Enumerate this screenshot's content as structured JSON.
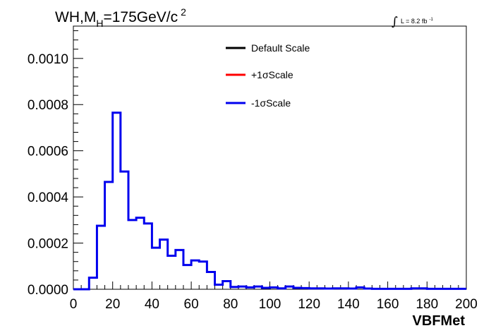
{
  "chart_data": {
    "type": "histogram",
    "title": {
      "prefix": "WH,M",
      "subscript": "H",
      "mid": "=175GeV/c",
      "superscript": "2"
    },
    "luminosity": {
      "integral": "∫",
      "text": "L = 8.2 fb",
      "superscript": "-1"
    },
    "xlabel": "VBFMet",
    "ylabel": "",
    "xlim": [
      0,
      200
    ],
    "ylim": [
      0,
      0.00114
    ],
    "x_ticks": [
      0,
      20,
      40,
      60,
      80,
      100,
      120,
      140,
      160,
      180,
      200
    ],
    "x_tick_labels": [
      "0",
      "20",
      "40",
      "60",
      "80",
      "100",
      "120",
      "140",
      "160",
      "180",
      "200"
    ],
    "y_ticks": [
      0,
      0.0002,
      0.0004,
      0.0006,
      0.0008,
      0.001
    ],
    "y_tick_labels": [
      "0.0000",
      "0.0002",
      "0.0004",
      "0.0006",
      "0.0008",
      "0.0010"
    ],
    "bin_width": 4,
    "bin_edges_start": 0,
    "legend": [
      {
        "label_prefix": "Default Scale",
        "label_sigma": "",
        "label_suffix": "",
        "color": "#000000"
      },
      {
        "label_prefix": "+1",
        "label_sigma": "σ",
        "label_suffix": "Scale",
        "color": "#ff0000"
      },
      {
        "label_prefix": "-1",
        "label_sigma": "σ",
        "label_suffix": "Scale",
        "color": "#0000ee"
      }
    ],
    "series": [
      {
        "name": "-1σScale",
        "color": "#0000ee",
        "values": [
          0,
          0,
          5e-05,
          0.000275,
          0.000465,
          0.000765,
          0.00051,
          0.0003,
          0.00031,
          0.000285,
          0.00018,
          0.000215,
          0.000145,
          0.00017,
          0.000105,
          0.000125,
          0.00012,
          7.5e-05,
          2e-05,
          3.5e-05,
          1e-05,
          1.2e-05,
          8e-06,
          1.2e-05,
          6e-06,
          8e-06,
          4e-06,
          1.2e-05,
          6e-06,
          5e-06,
          4e-06,
          4e-06,
          3e-06,
          4e-06,
          4e-06,
          3e-06,
          8e-06,
          3e-06,
          2e-06,
          2e-06,
          2e-06,
          2e-06,
          2e-06,
          4e-06,
          4e-06,
          2e-06,
          2e-06,
          2e-06,
          2e-06,
          2e-06
        ]
      }
    ]
  }
}
